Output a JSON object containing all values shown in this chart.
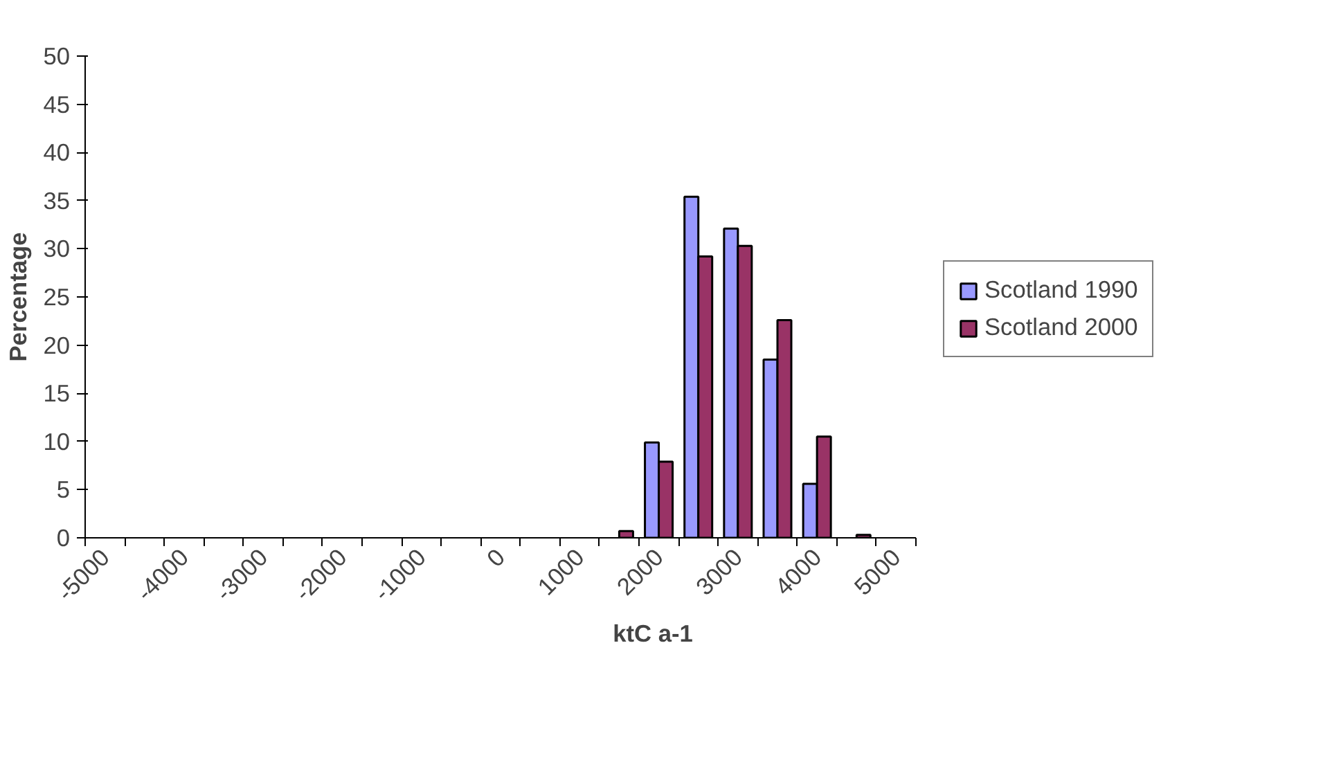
{
  "chart_data": {
    "type": "bar",
    "xlabel": "ktC a-1",
    "ylabel": "Percentage",
    "categories": [
      "-5000",
      null,
      "-4000",
      null,
      "-3000",
      null,
      "-2000",
      null,
      "-1000",
      null,
      "0",
      null,
      "1000",
      null,
      "2000",
      null,
      "3000",
      null,
      "4000",
      null,
      "5000"
    ],
    "series": [
      {
        "name": "Scotland 1990",
        "color": "#9999ff",
        "values": [
          null,
          null,
          null,
          null,
          null,
          null,
          null,
          null,
          null,
          null,
          null,
          null,
          null,
          null,
          9.9,
          35.4,
          32.1,
          18.5,
          5.6,
          null,
          null
        ]
      },
      {
        "name": "Scotland 2000",
        "color": "#993366",
        "values": [
          null,
          null,
          null,
          null,
          null,
          null,
          null,
          null,
          null,
          null,
          null,
          null,
          null,
          0.7,
          7.9,
          29.2,
          30.3,
          22.6,
          10.5,
          0.3,
          null
        ]
      }
    ],
    "ylim": [
      0,
      50
    ],
    "yticks": [
      0,
      5,
      10,
      15,
      20,
      25,
      30,
      35,
      40,
      45,
      50
    ],
    "grid": false,
    "legend": "right"
  }
}
